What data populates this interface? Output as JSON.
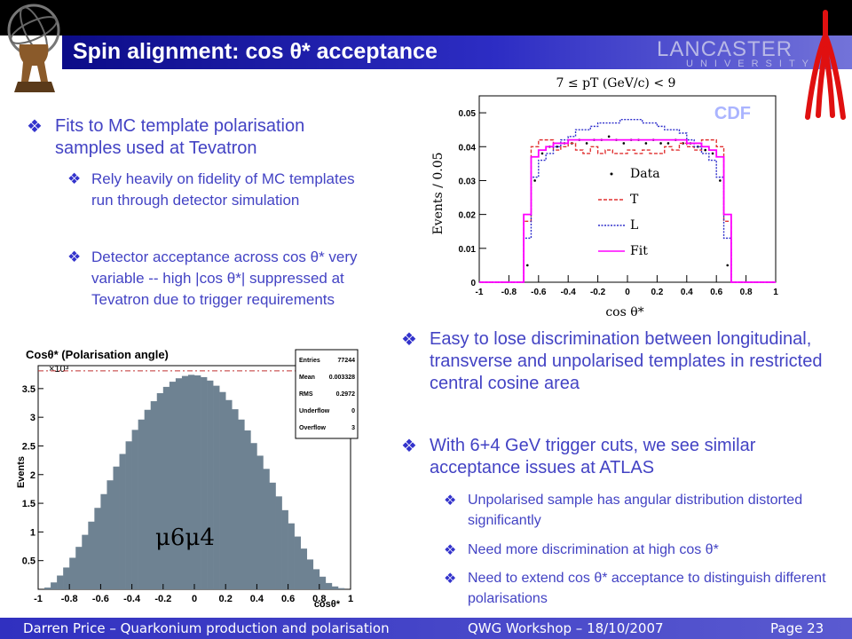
{
  "slide": {
    "title": "Spin alignment: cos θ* acceptance",
    "institution": "LANCASTER",
    "institution_sub": "UNIVERSITY"
  },
  "left_bullets": {
    "b1": "Fits to MC template polarisation samples used at Tevatron",
    "b1a": "Rely heavily on fidelity of MC templates run through detector simulation",
    "b1b": "Detector acceptance across cos θ* very variable -- high |cos θ*| suppressed at Tevatron due to trigger requirements"
  },
  "right_bullets": {
    "b2": "Easy to lose discrimination between longitudinal, transverse and unpolarised templates in restricted central cosine area",
    "b3": "With 6+4 GeV trigger cuts, we see similar acceptance issues at ATLAS",
    "b3a": "Unpolarised sample has angular distribution distorted significantly",
    "b3b": "Need more discrimination at high cos θ*",
    "b3c": "Need to extend cos θ* acceptance to distinguish different polarisations"
  },
  "footer": {
    "author": "Darren Price – Quarkonium production and polarisation",
    "event": "QWG Workshop – 18/10/2007",
    "page": "Page 23"
  },
  "chart_data": [
    {
      "type": "bar",
      "title": "Cosθ* (Polarisation angle)",
      "xlabel": "cosθ*",
      "ylabel": "Events",
      "y_multiplier": "×10³",
      "xlim": [
        -1,
        1
      ],
      "ylim": [
        0,
        3.9
      ],
      "x_ticks": [
        "-1",
        "-0.8",
        "-0.6",
        "-0.4",
        "-0.2",
        "0",
        "0.2",
        "0.4",
        "0.6",
        "0.8",
        "1"
      ],
      "y_ticks": [
        "0.5",
        "1",
        "1.5",
        "2",
        "2.5",
        "3",
        "3.5"
      ],
      "bin_edges": [
        -0.96,
        0.96
      ],
      "values": [
        0.03,
        0.12,
        0.24,
        0.38,
        0.55,
        0.74,
        0.95,
        1.18,
        1.42,
        1.66,
        1.9,
        2.14,
        2.36,
        2.58,
        2.78,
        2.96,
        3.13,
        3.28,
        3.42,
        3.53,
        3.62,
        3.68,
        3.72,
        3.74,
        3.73,
        3.7,
        3.64,
        3.55,
        3.44,
        3.3,
        3.14,
        2.96,
        2.77,
        2.55,
        2.33,
        2.1,
        1.86,
        1.62,
        1.38,
        1.15,
        0.92,
        0.71,
        0.52,
        0.35,
        0.22,
        0.11,
        0.05,
        0.02
      ],
      "reference_line": 3.81,
      "fill_color": "#6e8292",
      "stats": [
        {
          "label": "Entries",
          "value": "77244"
        },
        {
          "label": "Mean",
          "value": "0.003328"
        },
        {
          "label": "RMS",
          "value": "0.2972"
        },
        {
          "label": "Underflow",
          "value": "0"
        },
        {
          "label": "Overflow",
          "value": "3"
        }
      ],
      "annotation": "μ6μ4"
    },
    {
      "type": "line",
      "title": "7 ≤ pT (GeV/c) < 9",
      "xlabel": "cos θ*",
      "ylabel": "Events / 0.05",
      "watermark": "CDF",
      "xlim": [
        -1,
        1
      ],
      "ylim": [
        0,
        0.055
      ],
      "x_ticks": [
        "-1",
        "-0.8",
        "-0.6",
        "-0.4",
        "-0.2",
        "0",
        "0.2",
        "0.4",
        "0.6",
        "0.8",
        "1"
      ],
      "y_ticks": [
        "0",
        "0.01",
        "0.02",
        "0.03",
        "0.04",
        "0.05"
      ],
      "x": [
        -0.975,
        -0.925,
        -0.875,
        -0.825,
        -0.775,
        -0.725,
        -0.675,
        -0.625,
        -0.575,
        -0.525,
        -0.475,
        -0.425,
        -0.375,
        -0.325,
        -0.275,
        -0.225,
        -0.175,
        -0.125,
        -0.075,
        -0.025,
        0.025,
        0.075,
        0.125,
        0.175,
        0.225,
        0.275,
        0.325,
        0.375,
        0.425,
        0.475,
        0.525,
        0.575,
        0.625,
        0.675,
        0.725,
        0.775,
        0.825,
        0.875,
        0.925,
        0.975
      ],
      "series": [
        {
          "name": "Data",
          "color": "#000000",
          "values": [
            0,
            0,
            0,
            0,
            0,
            0,
            0.005,
            0.03,
            0.038,
            0.04,
            0.04,
            0.041,
            0.041,
            0.042,
            0.041,
            0.042,
            0.042,
            0.043,
            0.042,
            0.041,
            0.042,
            0.042,
            0.041,
            0.042,
            0.041,
            0.041,
            0.042,
            0.041,
            0.041,
            0.04,
            0.039,
            0.038,
            0.03,
            0.005,
            0,
            0,
            0,
            0,
            0,
            0
          ]
        },
        {
          "name": "T",
          "color": "#e03030",
          "values": [
            0,
            0,
            0,
            0,
            0,
            0,
            0.018,
            0.04,
            0.042,
            0.042,
            0.039,
            0.04,
            0.041,
            0.039,
            0.038,
            0.04,
            0.038,
            0.039,
            0.038,
            0.038,
            0.039,
            0.038,
            0.039,
            0.038,
            0.038,
            0.04,
            0.039,
            0.041,
            0.04,
            0.039,
            0.042,
            0.042,
            0.04,
            0.018,
            0,
            0,
            0,
            0,
            0,
            0
          ]
        },
        {
          "name": "L",
          "color": "#3030cc",
          "values": [
            0,
            0,
            0,
            0,
            0,
            0,
            0.013,
            0.031,
            0.036,
            0.038,
            0.04,
            0.042,
            0.043,
            0.045,
            0.045,
            0.046,
            0.047,
            0.047,
            0.047,
            0.048,
            0.048,
            0.048,
            0.047,
            0.047,
            0.046,
            0.045,
            0.045,
            0.044,
            0.042,
            0.04,
            0.038,
            0.036,
            0.031,
            0.013,
            0,
            0,
            0,
            0,
            0,
            0
          ]
        },
        {
          "name": "Fit",
          "color": "#ff00ff",
          "values": [
            0,
            0,
            0,
            0,
            0,
            0,
            0.02,
            0.037,
            0.039,
            0.04,
            0.041,
            0.041,
            0.042,
            0.042,
            0.042,
            0.042,
            0.042,
            0.042,
            0.042,
            0.042,
            0.042,
            0.042,
            0.042,
            0.042,
            0.042,
            0.042,
            0.042,
            0.042,
            0.041,
            0.041,
            0.04,
            0.039,
            0.037,
            0.02,
            0,
            0,
            0,
            0,
            0,
            0
          ]
        }
      ],
      "legend": "center-right"
    }
  ],
  "colors": {
    "title_bar": "#2020b0",
    "bullet_text": "#4343c4",
    "footer": "#3a3ac4"
  }
}
